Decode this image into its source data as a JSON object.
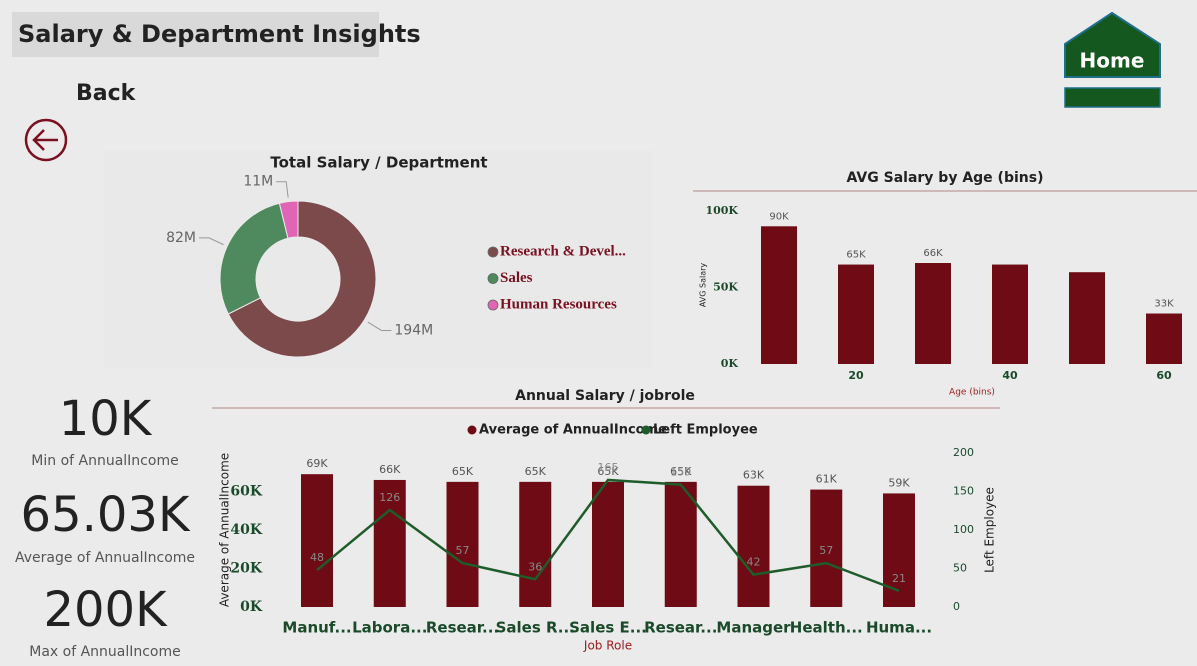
{
  "header": {
    "title": "Salary & Department Insights",
    "back": "Back",
    "home": "Home"
  },
  "cards": [
    {
      "value": "10K",
      "label": "Min of AnnualIncome"
    },
    {
      "value": "65.03K",
      "label": "Average of AnnualIncome"
    },
    {
      "value": "200K",
      "label": "Max of AnnualIncome"
    }
  ],
  "chart_data": [
    {
      "type": "pie",
      "title": "Total Salary / Department",
      "categories": [
        "Research & Devel...",
        "Sales",
        "Human Resources"
      ],
      "values": [
        194,
        82,
        11
      ],
      "value_labels": [
        "194M",
        "82M",
        "11M"
      ],
      "colors": [
        "#7d4a4c",
        "#4f8a5e",
        "#e066b5"
      ],
      "donut": true
    },
    {
      "type": "bar",
      "title": "AVG Salary by Age (bins)",
      "categories": [
        null,
        "20",
        null,
        "40",
        null,
        "60"
      ],
      "values": [
        90000,
        65000,
        66000,
        65000,
        60000,
        33000
      ],
      "value_labels": [
        "90K",
        "65K",
        "66K",
        null,
        null,
        "33K"
      ],
      "color": "#6e0b14",
      "y_label": "AVG Salary",
      "x_label": "Age (bins)",
      "ylim": [
        0,
        100000
      ],
      "yticks": [
        {
          "value": 0,
          "label": "0K"
        },
        {
          "value": 50000,
          "label": "50K"
        },
        {
          "value": 100000,
          "label": "100K"
        }
      ]
    },
    {
      "type": "bar",
      "title": "Annual Salary / jobrole",
      "categories": [
        "Manuf...",
        "Labora...",
        "Resear...",
        "Sales R...",
        "Sales E...",
        "Resear...",
        "Manager",
        "Health...",
        "Huma..."
      ],
      "series": [
        {
          "name": "Average of AnnualIncome",
          "color": "#6e0b14",
          "values": [
            69000,
            66000,
            65000,
            65000,
            65000,
            65000,
            63000,
            61000,
            59000
          ],
          "value_labels": [
            "69K",
            "66K",
            "65K",
            "65K",
            "65K",
            "65K",
            "63K",
            "61K",
            "59K"
          ]
        },
        {
          "name": "Left Employee",
          "color": "#1e5c2a",
          "type": "line",
          "axis": "y2",
          "values": [
            48,
            126,
            57,
            36,
            165,
            159,
            42,
            57,
            21
          ]
        }
      ],
      "y_label": "Average of AnnualIncome",
      "y2_label": "Left Employee",
      "x_label": "Job Role",
      "ylim": [
        0,
        80000
      ],
      "yticks": [
        {
          "value": 0,
          "label": "0K"
        },
        {
          "value": 20000,
          "label": "20K"
        },
        {
          "value": 40000,
          "label": "40K"
        },
        {
          "value": 60000,
          "label": "60K"
        }
      ],
      "y2lim": [
        0,
        200
      ],
      "y2ticks": [
        0,
        50,
        100,
        150,
        200
      ]
    }
  ]
}
